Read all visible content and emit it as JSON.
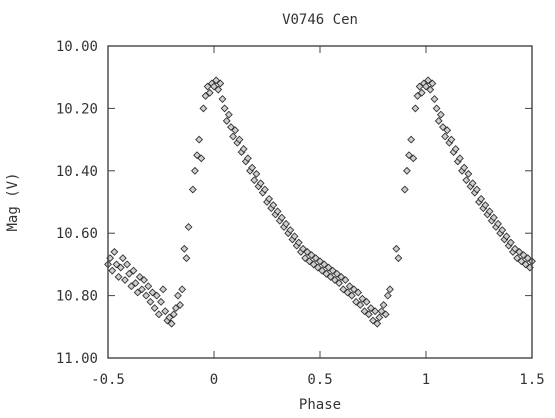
{
  "chart_data": {
    "type": "scatter",
    "title": "V0746 Cen",
    "xlabel": "Phase",
    "ylabel": "Mag (V)",
    "xlim": [
      -0.5,
      1.5
    ],
    "ylim": [
      11.0,
      10.0
    ],
    "y_inverted": true,
    "grid": false,
    "marker": "diamond",
    "xticks": [
      {
        "value": -0.5,
        "label": "-0.5"
      },
      {
        "value": 0,
        "label": "0"
      },
      {
        "value": 0.5,
        "label": "0.5"
      },
      {
        "value": 1,
        "label": "1"
      },
      {
        "value": 1.5,
        "label": "1.5"
      }
    ],
    "yticks": [
      {
        "value": 10.0,
        "label": "10.00"
      },
      {
        "value": 10.2,
        "label": "10.20"
      },
      {
        "value": 10.4,
        "label": "10.40"
      },
      {
        "value": 10.6,
        "label": "10.60"
      },
      {
        "value": 10.8,
        "label": "10.80"
      },
      {
        "value": 11.0,
        "label": "11.00"
      }
    ],
    "points": [
      [
        -0.5,
        10.7
      ],
      [
        -0.49,
        10.68
      ],
      [
        -0.48,
        10.72
      ],
      [
        -0.47,
        10.66
      ],
      [
        -0.46,
        10.7
      ],
      [
        -0.45,
        10.74
      ],
      [
        -0.44,
        10.71
      ],
      [
        -0.43,
        10.68
      ],
      [
        -0.42,
        10.75
      ],
      [
        -0.41,
        10.7
      ],
      [
        -0.4,
        10.73
      ],
      [
        -0.39,
        10.77
      ],
      [
        -0.38,
        10.72
      ],
      [
        -0.37,
        10.76
      ],
      [
        -0.36,
        10.79
      ],
      [
        -0.35,
        10.74
      ],
      [
        -0.34,
        10.78
      ],
      [
        -0.33,
        10.75
      ],
      [
        -0.32,
        10.8
      ],
      [
        -0.31,
        10.77
      ],
      [
        -0.3,
        10.82
      ],
      [
        -0.29,
        10.79
      ],
      [
        -0.28,
        10.84
      ],
      [
        -0.27,
        10.8
      ],
      [
        -0.26,
        10.86
      ],
      [
        -0.25,
        10.82
      ],
      [
        -0.24,
        10.78
      ],
      [
        -0.23,
        10.85
      ],
      [
        -0.22,
        10.88
      ],
      [
        -0.21,
        10.87
      ],
      [
        -0.2,
        10.89
      ],
      [
        -0.19,
        10.86
      ],
      [
        -0.18,
        10.84
      ],
      [
        -0.17,
        10.8
      ],
      [
        -0.16,
        10.83
      ],
      [
        -0.15,
        10.78
      ],
      [
        -0.14,
        10.65
      ],
      [
        -0.13,
        10.68
      ],
      [
        -0.12,
        10.58
      ],
      [
        -0.1,
        10.46
      ],
      [
        -0.09,
        10.4
      ],
      [
        -0.08,
        10.35
      ],
      [
        -0.07,
        10.3
      ],
      [
        -0.06,
        10.36
      ],
      [
        -0.05,
        10.2
      ],
      [
        -0.04,
        10.16
      ],
      [
        -0.03,
        10.13
      ],
      [
        -0.02,
        10.15
      ],
      [
        -0.01,
        10.12
      ],
      [
        0.0,
        10.13
      ],
      [
        0.01,
        10.11
      ],
      [
        0.02,
        10.14
      ],
      [
        0.03,
        10.12
      ],
      [
        0.04,
        10.17
      ],
      [
        0.05,
        10.2
      ],
      [
        0.06,
        10.24
      ],
      [
        0.07,
        10.22
      ],
      [
        0.08,
        10.26
      ],
      [
        0.09,
        10.29
      ],
      [
        0.1,
        10.27
      ],
      [
        0.11,
        10.31
      ],
      [
        0.12,
        10.3
      ],
      [
        0.13,
        10.34
      ],
      [
        0.14,
        10.33
      ],
      [
        0.15,
        10.37
      ],
      [
        0.16,
        10.36
      ],
      [
        0.17,
        10.4
      ],
      [
        0.18,
        10.39
      ],
      [
        0.19,
        10.43
      ],
      [
        0.2,
        10.41
      ],
      [
        0.21,
        10.45
      ],
      [
        0.22,
        10.44
      ],
      [
        0.23,
        10.47
      ],
      [
        0.24,
        10.46
      ],
      [
        0.25,
        10.5
      ],
      [
        0.26,
        10.49
      ],
      [
        0.27,
        10.52
      ],
      [
        0.28,
        10.51
      ],
      [
        0.29,
        10.54
      ],
      [
        0.3,
        10.53
      ],
      [
        0.31,
        10.56
      ],
      [
        0.32,
        10.55
      ],
      [
        0.33,
        10.58
      ],
      [
        0.34,
        10.57
      ],
      [
        0.35,
        10.6
      ],
      [
        0.36,
        10.59
      ],
      [
        0.37,
        10.62
      ],
      [
        0.38,
        10.61
      ],
      [
        0.39,
        10.64
      ],
      [
        0.4,
        10.63
      ],
      [
        0.41,
        10.66
      ],
      [
        0.42,
        10.65
      ],
      [
        0.43,
        10.68
      ],
      [
        0.44,
        10.66
      ],
      [
        0.45,
        10.69
      ],
      [
        0.46,
        10.67
      ],
      [
        0.47,
        10.7
      ],
      [
        0.48,
        10.68
      ],
      [
        0.49,
        10.71
      ],
      [
        0.5,
        10.69
      ],
      [
        0.51,
        10.72
      ],
      [
        0.52,
        10.7
      ],
      [
        0.53,
        10.73
      ],
      [
        0.54,
        10.71
      ],
      [
        0.55,
        10.74
      ],
      [
        0.56,
        10.72
      ],
      [
        0.57,
        10.75
      ],
      [
        0.58,
        10.73
      ],
      [
        0.59,
        10.76
      ],
      [
        0.6,
        10.74
      ],
      [
        0.61,
        10.78
      ],
      [
        0.62,
        10.75
      ],
      [
        0.63,
        10.79
      ],
      [
        0.64,
        10.77
      ],
      [
        0.65,
        10.8
      ],
      [
        0.66,
        10.78
      ],
      [
        0.67,
        10.82
      ],
      [
        0.68,
        10.79
      ],
      [
        0.69,
        10.83
      ],
      [
        0.7,
        10.81
      ],
      [
        0.71,
        10.85
      ],
      [
        0.72,
        10.82
      ],
      [
        0.73,
        10.86
      ],
      [
        0.74,
        10.84
      ],
      [
        0.75,
        10.88
      ],
      [
        0.76,
        10.85
      ],
      [
        0.77,
        10.89
      ],
      [
        0.78,
        10.87
      ],
      [
        0.79,
        10.85
      ],
      [
        0.8,
        10.83
      ],
      [
        0.81,
        10.86
      ],
      [
        0.82,
        10.8
      ],
      [
        0.83,
        10.78
      ],
      [
        0.86,
        10.65
      ],
      [
        0.87,
        10.68
      ],
      [
        0.9,
        10.46
      ],
      [
        0.91,
        10.4
      ],
      [
        0.92,
        10.35
      ],
      [
        0.93,
        10.3
      ],
      [
        0.94,
        10.36
      ],
      [
        0.95,
        10.2
      ],
      [
        0.96,
        10.16
      ],
      [
        0.97,
        10.13
      ],
      [
        0.98,
        10.15
      ],
      [
        0.99,
        10.12
      ],
      [
        1.0,
        10.13
      ],
      [
        1.01,
        10.11
      ],
      [
        1.02,
        10.14
      ],
      [
        1.03,
        10.12
      ],
      [
        1.04,
        10.17
      ],
      [
        1.05,
        10.2
      ],
      [
        1.06,
        10.24
      ],
      [
        1.07,
        10.22
      ],
      [
        1.08,
        10.26
      ],
      [
        1.09,
        10.29
      ],
      [
        1.1,
        10.27
      ],
      [
        1.11,
        10.31
      ],
      [
        1.12,
        10.3
      ],
      [
        1.13,
        10.34
      ],
      [
        1.14,
        10.33
      ],
      [
        1.15,
        10.37
      ],
      [
        1.16,
        10.36
      ],
      [
        1.17,
        10.4
      ],
      [
        1.18,
        10.39
      ],
      [
        1.19,
        10.43
      ],
      [
        1.2,
        10.41
      ],
      [
        1.21,
        10.45
      ],
      [
        1.22,
        10.44
      ],
      [
        1.23,
        10.47
      ],
      [
        1.24,
        10.46
      ],
      [
        1.25,
        10.5
      ],
      [
        1.26,
        10.49
      ],
      [
        1.27,
        10.52
      ],
      [
        1.28,
        10.51
      ],
      [
        1.29,
        10.54
      ],
      [
        1.3,
        10.53
      ],
      [
        1.31,
        10.56
      ],
      [
        1.32,
        10.55
      ],
      [
        1.33,
        10.58
      ],
      [
        1.34,
        10.57
      ],
      [
        1.35,
        10.6
      ],
      [
        1.36,
        10.59
      ],
      [
        1.37,
        10.62
      ],
      [
        1.38,
        10.61
      ],
      [
        1.39,
        10.64
      ],
      [
        1.4,
        10.63
      ],
      [
        1.41,
        10.66
      ],
      [
        1.42,
        10.65
      ],
      [
        1.43,
        10.68
      ],
      [
        1.44,
        10.66
      ],
      [
        1.45,
        10.69
      ],
      [
        1.46,
        10.67
      ],
      [
        1.47,
        10.7
      ],
      [
        1.48,
        10.68
      ],
      [
        1.49,
        10.71
      ],
      [
        1.5,
        10.69
      ]
    ]
  }
}
